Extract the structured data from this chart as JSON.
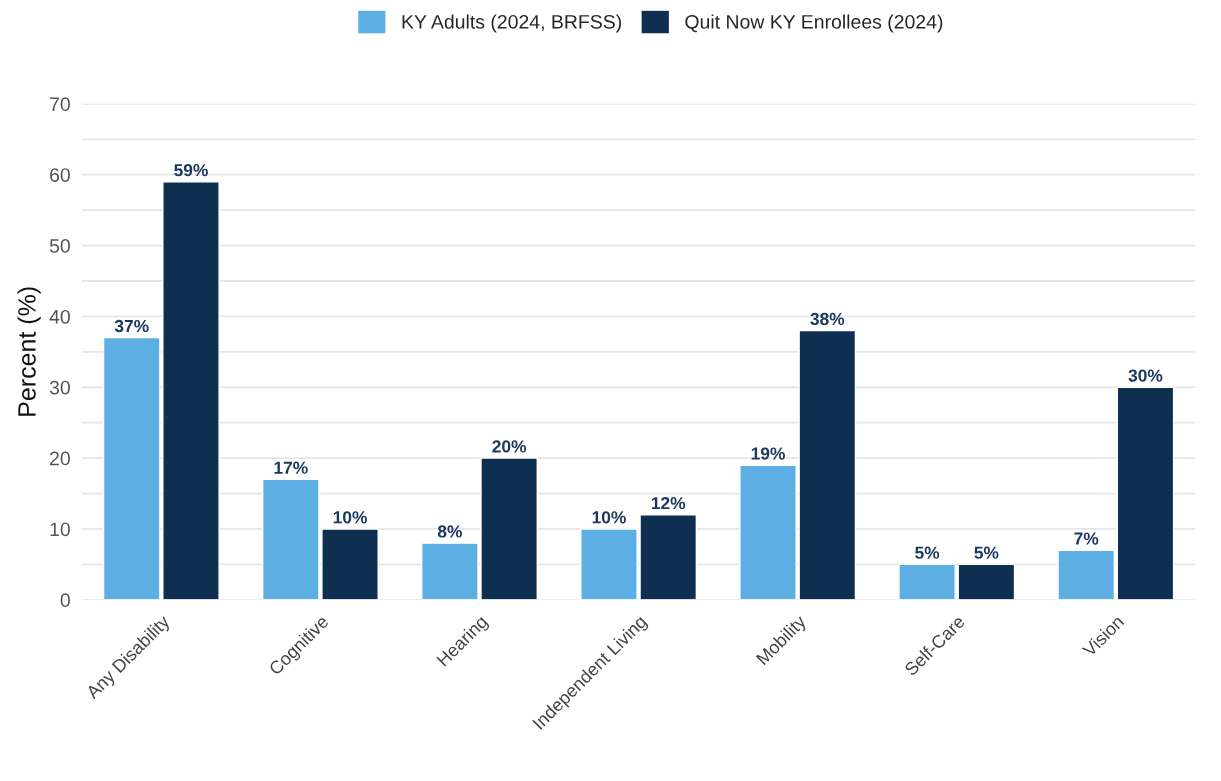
{
  "chart_data": {
    "type": "bar",
    "ylabel": "Percent (%)",
    "categories": [
      "Any Disability",
      "Cognitive",
      "Hearing",
      "Independent Living",
      "Mobility",
      "Self-Care",
      "Vision"
    ],
    "series": [
      {
        "name": "KY Adults (2024, BRFSS)",
        "color": "#5dafe3",
        "values": [
          37,
          17,
          8,
          10,
          19,
          5,
          7
        ],
        "value_labels": [
          "37%",
          "17%",
          "8%",
          "10%",
          "19%",
          "5%",
          "7%"
        ]
      },
      {
        "name": "Quit Now KY Enrollees (2024)",
        "color": "#0e2f50",
        "values": [
          59,
          10,
          20,
          12,
          38,
          5,
          30
        ],
        "value_labels": [
          "59%",
          "10%",
          "20%",
          "12%",
          "38%",
          "5%",
          "30%"
        ]
      }
    ],
    "ylim": [
      0,
      70
    ],
    "yticks": [
      0,
      {
        "value": 5,
        "label": null
      },
      10,
      {
        "value": 15,
        "label": null
      },
      20,
      {
        "value": 25,
        "label": null
      },
      30,
      {
        "value": 35,
        "label": null
      },
      40,
      {
        "value": 45,
        "label": null
      },
      50,
      {
        "value": 55,
        "label": null
      },
      60,
      {
        "value": 65,
        "label": null
      },
      70
    ],
    "grid": "y",
    "legend": "top"
  }
}
